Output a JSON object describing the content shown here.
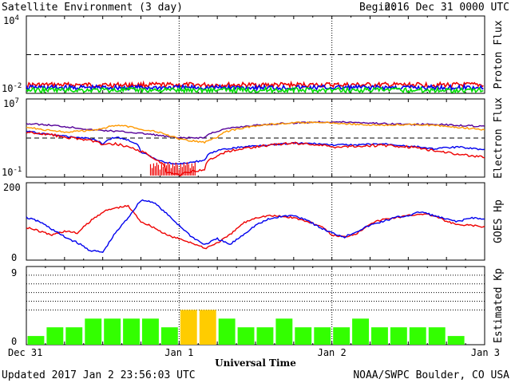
{
  "header": {
    "title": "Satellite Environment (3 day)",
    "begin_label": "Begin:",
    "begin_value": "2016 Dec 31 0000 UTC"
  },
  "footer": {
    "updated": "Updated 2017 Jan  2 23:56:03 UTC",
    "credit": "NOAA/SWPC Boulder, CO USA"
  },
  "colors": {
    "red": "#ee0000",
    "blue": "#0000ee",
    "green": "#00dd00",
    "purple": "#550099",
    "orange": "#ff9900",
    "kp_green": "#33ff00",
    "kp_yellow": "#ffcc00",
    "frame": "#000000"
  },
  "chart_data": [
    {
      "type": "line",
      "panel": "Proton Flux",
      "ylabel": "Proton Flux",
      "yscale": "log",
      "ylim": [
        0.01,
        10000
      ],
      "yticks": [
        {
          "base": "10",
          "exp": "4"
        },
        {
          "base": "10",
          "exp": "-2"
        }
      ],
      "threshold": 10,
      "x_range_hours": [
        0,
        72
      ],
      "series": [
        {
          "color": "red",
          "level": 0.045
        },
        {
          "color": "blue",
          "level": 0.028
        },
        {
          "color": "green",
          "level": 0.018
        }
      ]
    },
    {
      "type": "line",
      "panel": "Electron Flux",
      "ylabel": "Electron Flux",
      "yscale": "log",
      "ylim": [
        0.1,
        10000000
      ],
      "yticks": [
        {
          "base": "10",
          "exp": "7"
        },
        {
          "base": "10",
          "exp": "-1"
        }
      ],
      "threshold": 1000,
      "series": [
        {
          "color": "purple",
          "points": [
            [
              0,
              30000
            ],
            [
              2,
              25000
            ],
            [
              6,
              15000
            ],
            [
              10,
              7000
            ],
            [
              14,
              5000
            ],
            [
              18,
              3000
            ],
            [
              22,
              1400
            ],
            [
              24,
              1000
            ],
            [
              28,
              1100
            ],
            [
              30,
              5000
            ],
            [
              34,
              15000
            ],
            [
              38,
              25000
            ],
            [
              42,
              35000
            ],
            [
              46,
              45000
            ],
            [
              48,
              45000
            ],
            [
              52,
              40000
            ],
            [
              56,
              30000
            ],
            [
              60,
              25000
            ],
            [
              64,
              25000
            ],
            [
              68,
              20000
            ],
            [
              72,
              15000
            ]
          ]
        },
        {
          "color": "orange",
          "points": [
            [
              0,
              14000
            ],
            [
              2,
              8000
            ],
            [
              6,
              4000
            ],
            [
              10,
              6000
            ],
            [
              12,
              9000
            ],
            [
              14,
              20000
            ],
            [
              16,
              15000
            ],
            [
              18,
              8000
            ],
            [
              22,
              2000
            ],
            [
              24,
              700
            ],
            [
              28,
              350
            ],
            [
              30,
              1200
            ],
            [
              34,
              10000
            ],
            [
              38,
              25000
            ],
            [
              42,
              35000
            ],
            [
              46,
              40000
            ],
            [
              48,
              35000
            ],
            [
              52,
              25000
            ],
            [
              56,
              20000
            ],
            [
              60,
              25000
            ],
            [
              64,
              20000
            ],
            [
              68,
              12000
            ],
            [
              72,
              7000
            ]
          ]
        },
        {
          "color": "blue",
          "points": [
            [
              0,
              5000
            ],
            [
              2,
              3000
            ],
            [
              6,
              1500
            ],
            [
              10,
              900
            ],
            [
              12,
              250
            ],
            [
              14,
              1200
            ],
            [
              16,
              600
            ],
            [
              18,
              30
            ],
            [
              20,
              8
            ],
            [
              22,
              3
            ],
            [
              24,
              2
            ],
            [
              28,
              5
            ],
            [
              30,
              50
            ],
            [
              34,
              120
            ],
            [
              38,
              200
            ],
            [
              42,
              300
            ],
            [
              46,
              250
            ],
            [
              48,
              200
            ],
            [
              52,
              200
            ],
            [
              56,
              250
            ],
            [
              60,
              150
            ],
            [
              64,
              80
            ],
            [
              68,
              120
            ],
            [
              72,
              60
            ]
          ]
        },
        {
          "color": "red",
          "points": [
            [
              0,
              4000
            ],
            [
              2,
              3000
            ],
            [
              6,
              1200
            ],
            [
              10,
              600
            ],
            [
              12,
              200
            ],
            [
              14,
              250
            ],
            [
              16,
              120
            ],
            [
              18,
              40
            ],
            [
              20,
              6
            ],
            [
              22,
              0.3
            ],
            [
              24,
              0.15
            ],
            [
              28,
              0.6
            ],
            [
              30,
              15
            ],
            [
              34,
              80
            ],
            [
              38,
              180
            ],
            [
              42,
              300
            ],
            [
              46,
              200
            ],
            [
              48,
              120
            ],
            [
              52,
              150
            ],
            [
              56,
              180
            ],
            [
              60,
              120
            ],
            [
              64,
              50
            ],
            [
              68,
              20
            ],
            [
              72,
              10
            ]
          ]
        }
      ]
    },
    {
      "type": "line",
      "panel": "GOES Hp",
      "ylabel": "GOES Hp",
      "ylim": [
        0,
        200
      ],
      "yticks": [
        "200",
        "0"
      ],
      "series": [
        {
          "color": "red",
          "points": [
            [
              0,
              85
            ],
            [
              2,
              75
            ],
            [
              4,
              65
            ],
            [
              6,
              75
            ],
            [
              8,
              70
            ],
            [
              10,
              100
            ],
            [
              12,
              125
            ],
            [
              14,
              135
            ],
            [
              16,
              140
            ],
            [
              18,
              100
            ],
            [
              20,
              85
            ],
            [
              22,
              65
            ],
            [
              24,
              55
            ],
            [
              26,
              45
            ],
            [
              28,
              30
            ],
            [
              30,
              45
            ],
            [
              32,
              65
            ],
            [
              34,
              95
            ],
            [
              36,
              110
            ],
            [
              38,
              115
            ],
            [
              40,
              113
            ],
            [
              42,
              110
            ],
            [
              44,
              100
            ],
            [
              46,
              90
            ],
            [
              48,
              65
            ],
            [
              50,
              60
            ],
            [
              52,
              70
            ],
            [
              54,
              95
            ],
            [
              56,
              105
            ],
            [
              58,
              110
            ],
            [
              60,
              115
            ],
            [
              62,
              120
            ],
            [
              64,
              115
            ],
            [
              66,
              100
            ],
            [
              68,
              90
            ],
            [
              70,
              90
            ],
            [
              72,
              85
            ]
          ]
        },
        {
          "color": "blue",
          "points": [
            [
              0,
              110
            ],
            [
              2,
              100
            ],
            [
              4,
              80
            ],
            [
              6,
              60
            ],
            [
              8,
              45
            ],
            [
              10,
              25
            ],
            [
              12,
              20
            ],
            [
              14,
              70
            ],
            [
              16,
              110
            ],
            [
              18,
              155
            ],
            [
              20,
              150
            ],
            [
              22,
              120
            ],
            [
              24,
              90
            ],
            [
              26,
              60
            ],
            [
              28,
              40
            ],
            [
              30,
              55
            ],
            [
              32,
              40
            ],
            [
              34,
              65
            ],
            [
              36,
              90
            ],
            [
              38,
              105
            ],
            [
              40,
              113
            ],
            [
              42,
              115
            ],
            [
              44,
              105
            ],
            [
              46,
              85
            ],
            [
              48,
              70
            ],
            [
              50,
              60
            ],
            [
              52,
              75
            ],
            [
              54,
              90
            ],
            [
              56,
              100
            ],
            [
              58,
              110
            ],
            [
              60,
              115
            ],
            [
              62,
              125
            ],
            [
              64,
              115
            ],
            [
              66,
              105
            ],
            [
              68,
              100
            ],
            [
              70,
              110
            ],
            [
              72,
              105
            ]
          ]
        }
      ]
    },
    {
      "type": "bar",
      "panel": "Estimated Kp",
      "ylabel": "Estimated Kp",
      "ylim": [
        0,
        9
      ],
      "yticks": [
        "9",
        "0"
      ],
      "dotted_levels": [
        4,
        5,
        6,
        7,
        8
      ],
      "bar_hours": 3,
      "values": [
        1,
        2,
        2,
        3,
        3,
        3,
        3,
        2,
        4,
        4,
        3,
        2,
        2,
        3,
        2,
        2,
        2,
        3,
        2,
        2,
        2,
        2,
        1,
        0
      ],
      "storm_threshold": 4
    }
  ],
  "xaxis": {
    "label": "Universal Time",
    "ticks": [
      {
        "hour": 0,
        "label": "Dec 31"
      },
      {
        "hour": 24,
        "label": "Jan 1"
      },
      {
        "hour": 48,
        "label": "Jan 2"
      },
      {
        "hour": 72,
        "label": "Jan 3"
      }
    ]
  }
}
